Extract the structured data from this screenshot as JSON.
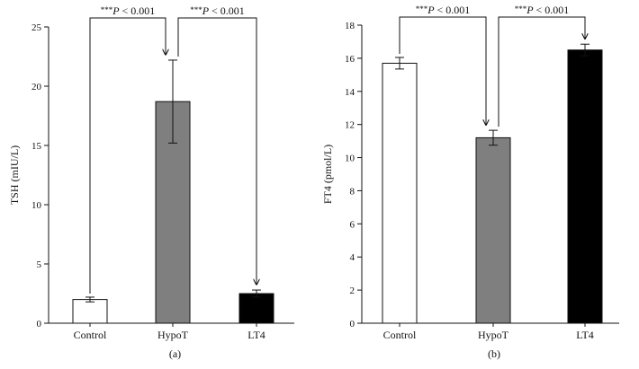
{
  "chart_data": [
    {
      "type": "bar",
      "panel_label": "(a)",
      "title": "",
      "xlabel": "",
      "ylabel": "TSH (mIU/L)",
      "ylim": [
        0,
        25
      ],
      "yticks": [
        0,
        5,
        10,
        15,
        20,
        25
      ],
      "ytick_labels": [
        "0",
        "5",
        "10",
        "15",
        "20",
        "25"
      ],
      "categories": [
        "Control",
        "HypoT",
        "LT4"
      ],
      "values": [
        2.0,
        18.7,
        2.5
      ],
      "errors": [
        0.2,
        3.5,
        0.3
      ],
      "colors": [
        "#ffffff",
        "#7f7f7f",
        "#000000"
      ],
      "significance": [
        {
          "from": 0,
          "to": 1,
          "stars": "***",
          "p": "P",
          "text": " < 0.001"
        },
        {
          "from": 1,
          "to": 2,
          "stars": "***",
          "p": "P",
          "text": " < 0.001"
        }
      ]
    },
    {
      "type": "bar",
      "panel_label": "(b)",
      "title": "",
      "xlabel": "",
      "ylabel": "FT4 (pmol/L)",
      "ylim": [
        0,
        18
      ],
      "yticks": [
        0,
        2,
        4,
        6,
        8,
        10,
        12,
        14,
        16,
        18
      ],
      "ytick_labels": [
        "0",
        "2",
        "4",
        "6",
        "8",
        "10",
        "12",
        "14",
        "16",
        "18"
      ],
      "categories": [
        "Control",
        "HypoT",
        "LT4"
      ],
      "values": [
        15.7,
        11.2,
        16.5
      ],
      "errors": [
        0.35,
        0.45,
        0.35
      ],
      "colors": [
        "#ffffff",
        "#7f7f7f",
        "#000000"
      ],
      "significance": [
        {
          "from": 0,
          "to": 1,
          "stars": "***",
          "p": "P",
          "text": " < 0.001"
        },
        {
          "from": 1,
          "to": 2,
          "stars": "***",
          "p": "P",
          "text": " < 0.001"
        }
      ]
    }
  ]
}
